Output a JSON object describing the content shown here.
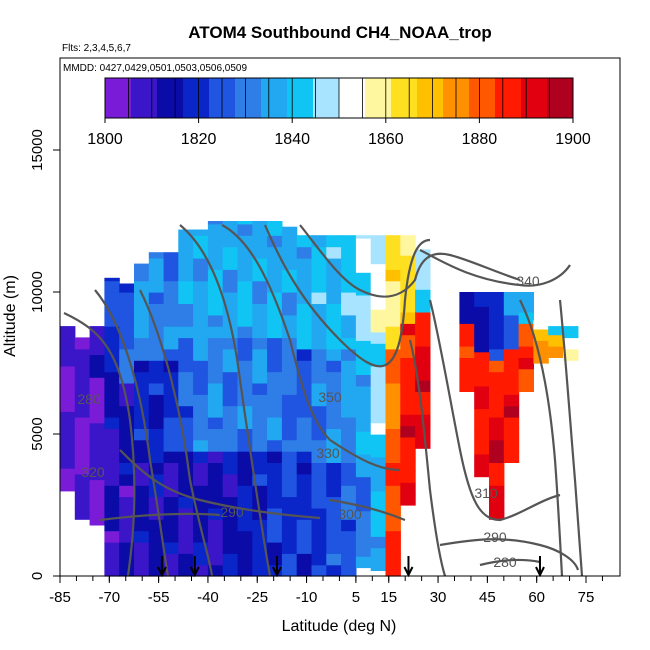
{
  "chart_data": {
    "type": "heatmap",
    "title": "ATOM4 Southbound CH4_NOAA_trop",
    "annotations": [
      "Flts: 2,3,4,5,6,7",
      "MMDD: 0427,0429,0501,0503,0506,0509"
    ],
    "xlabel": "Latitude (deg N)",
    "ylabel": "Altitude (m)",
    "xlim": [
      -85,
      80
    ],
    "ylim": [
      0,
      17600
    ],
    "x_ticks": [
      -85,
      -70,
      -55,
      -40,
      -25,
      -10,
      5,
      15,
      30,
      45,
      60,
      75
    ],
    "y_ticks": [
      0,
      5000,
      10000,
      15000
    ],
    "colorbar": {
      "ticks": [
        1800,
        1820,
        1840,
        1860,
        1880,
        1900
      ],
      "range": [
        1800,
        1900
      ],
      "colors": [
        "#7a1bd8",
        "#3a16c8",
        "#0b0ba8",
        "#0a26c8",
        "#1f55e0",
        "#2f7ee8",
        "#22a8f0",
        "#10c4f4",
        "#a8e4ff",
        "#ffffff",
        "#fff6a0",
        "#ffe020",
        "#ffc000",
        "#ff9000",
        "#ff5800",
        "#ff1a00",
        "#e00010",
        "#b00020"
      ]
    },
    "grid": false,
    "legend": "colorbar-top",
    "contour_labels": [
      "340",
      "350",
      "330",
      "310",
      "300",
      "290",
      "280",
      "290",
      "280",
      "320"
    ],
    "arrow_latitudes": [
      -54,
      -44,
      -19,
      21,
      61
    ],
    "series_cols": {
      "note_units": "latitude bins in deg N; altitude in m; CH4 in ppb",
      "cols": [
        {
          "x0": -85.0,
          "x1": -80.5,
          "ztop": 8800,
          "zbot": 3000,
          "v": [
            1806,
            1806,
            1804
          ]
        },
        {
          "x0": -80.5,
          "x1": -76.0,
          "ztop": 8400,
          "zbot": 2000,
          "v": [
            1807,
            1806,
            1805
          ]
        },
        {
          "x0": -76.0,
          "x1": -71.5,
          "ztop": 8800,
          "zbot": 1800,
          "v": [
            1808,
            1806,
            1803
          ]
        },
        {
          "x0": -71.5,
          "x1": -67.0,
          "ztop": 10500,
          "zbot": 0,
          "v": [
            1822,
            1812,
            1810
          ]
        },
        {
          "x0": -67.0,
          "x1": -62.5,
          "ztop": 10300,
          "zbot": 0,
          "v": [
            1826,
            1814,
            1810
          ]
        },
        {
          "x0": -62.5,
          "x1": -58.0,
          "ztop": 11000,
          "zbot": 0,
          "v": [
            1834,
            1818,
            1812
          ]
        },
        {
          "x0": -58.0,
          "x1": -53.5,
          "ztop": 11400,
          "zbot": 0,
          "v": [
            1832,
            1818,
            1814
          ]
        },
        {
          "x0": -53.5,
          "x1": -49.0,
          "ztop": 11400,
          "zbot": 0,
          "v": [
            1830,
            1820,
            1812
          ]
        },
        {
          "x0": -49.0,
          "x1": -44.5,
          "ztop": 12200,
          "zbot": 0,
          "v": [
            1836,
            1826,
            1812
          ]
        },
        {
          "x0": -44.5,
          "x1": -40.0,
          "ztop": 12200,
          "zbot": 0,
          "v": [
            1836,
            1830,
            1814
          ]
        },
        {
          "x0": -40.0,
          "x1": -35.5,
          "ztop": 12500,
          "zbot": 0,
          "v": [
            1838,
            1832,
            1812
          ]
        },
        {
          "x0": -35.5,
          "x1": -31.0,
          "ztop": 12500,
          "zbot": 0,
          "v": [
            1836,
            1830,
            1814
          ]
        },
        {
          "x0": -31.0,
          "x1": -26.5,
          "ztop": 12500,
          "zbot": 0,
          "v": [
            1838,
            1830,
            1816
          ]
        },
        {
          "x0": -26.5,
          "x1": -22.0,
          "ztop": 12500,
          "zbot": 0,
          "v": [
            1836,
            1832,
            1818
          ]
        },
        {
          "x0": -22.0,
          "x1": -17.5,
          "ztop": 12500,
          "zbot": 0,
          "v": [
            1838,
            1830,
            1820
          ]
        },
        {
          "x0": -17.5,
          "x1": -13.0,
          "ztop": 12300,
          "zbot": 0,
          "v": [
            1836,
            1828,
            1822
          ]
        },
        {
          "x0": -13.0,
          "x1": -8.5,
          "ztop": 12000,
          "zbot": 0,
          "v": [
            1838,
            1826,
            1820
          ]
        },
        {
          "x0": -8.5,
          "x1": -4.0,
          "ztop": 12000,
          "zbot": 0,
          "v": [
            1840,
            1830,
            1822
          ]
        },
        {
          "x0": -4.0,
          "x1": 0.5,
          "ztop": 12000,
          "zbot": 0,
          "v": [
            1840,
            1832,
            1824
          ]
        },
        {
          "x0": 0.5,
          "x1": 5.0,
          "ztop": 12000,
          "zbot": 0,
          "v": [
            1842,
            1834,
            1826
          ]
        },
        {
          "x0": 5.0,
          "x1": 9.5,
          "ztop": 12000,
          "zbot": 300,
          "v": [
            1848,
            1838,
            1830
          ]
        },
        {
          "x0": 9.5,
          "x1": 14.0,
          "ztop": 12000,
          "zbot": 200,
          "v": [
            1852,
            1846,
            1838
          ]
        },
        {
          "x0": 14.0,
          "x1": 18.5,
          "ztop": 12000,
          "zbot": 0,
          "v": [
            1862,
            1878,
            1884
          ]
        },
        {
          "x0": 18.5,
          "x1": 23.0,
          "ztop": 12000,
          "zbot": 2500,
          "v": [
            1864,
            1886,
            1890
          ]
        },
        {
          "x0": 23.0,
          "x1": 27.5,
          "ztop": 11500,
          "zbot": 4500,
          "v": [
            1845,
            1888,
            1892
          ]
        },
        {
          "x0": 36.5,
          "x1": 41.0,
          "ztop": 10000,
          "zbot": 6500,
          "v": [
            1812,
            1884,
            1888
          ]
        },
        {
          "x0": 41.0,
          "x1": 45.5,
          "ztop": 10000,
          "zbot": 3500,
          "v": [
            1816,
            1886,
            1890
          ]
        },
        {
          "x0": 45.5,
          "x1": 50.0,
          "ztop": 10000,
          "zbot": 2000,
          "v": [
            1818,
            1888,
            1892
          ]
        },
        {
          "x0": 50.0,
          "x1": 54.5,
          "ztop": 10000,
          "zbot": 4000,
          "v": [
            1830,
            1886,
            1890
          ]
        },
        {
          "x0": 54.5,
          "x1": 59.0,
          "ztop": 10000,
          "zbot": 6500,
          "v": [
            1840,
            1880,
            1886
          ]
        },
        {
          "x0": 59.0,
          "x1": 63.5,
          "ztop": 9000,
          "zbot": 7500,
          "v": [
            1846,
            1872,
            1878
          ]
        },
        {
          "x0": 63.5,
          "x1": 68.0,
          "ztop": 8800,
          "zbot": 7700,
          "v": [
            1842,
            1866,
            1870
          ]
        },
        {
          "x0": 68.0,
          "x1": 72.5,
          "ztop": 8800,
          "zbot": 7600,
          "v": [
            1838,
            1858,
            1862
          ]
        }
      ]
    }
  }
}
